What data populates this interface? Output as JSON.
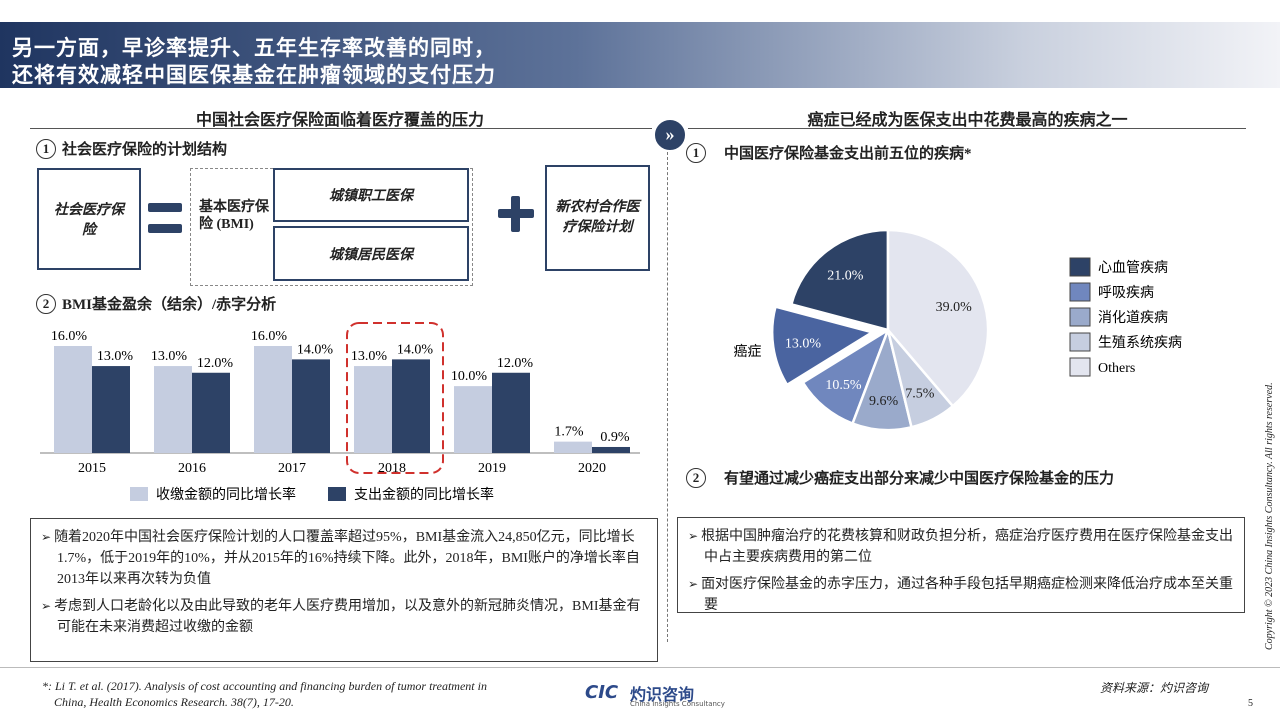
{
  "header": {
    "title_lines": [
      "另一方面，早诊率提升、五年生存率改善的同时，",
      "还将有效减轻中国医保基金在肿瘤领域的支付压力"
    ]
  },
  "left": {
    "heading": "中国社会医疗保险面临着医疗覆盖的压力",
    "section1": {
      "number": "1",
      "title": "社会医疗保险的计划结构"
    },
    "diagram": {
      "root": "社会医疗保险",
      "bmi": "基本医疗保险 (BMI)",
      "bmi_parts": [
        "城镇职工医保",
        "城镇居民医保"
      ],
      "ncms": "新农村合作医疗保险计划"
    },
    "section2": {
      "number": "2",
      "title": "BMI基金盈余（结余）/赤字分析"
    },
    "bullets": [
      "随着2020年中国社会医疗保险计划的人口覆盖率超过95%，BMI基金流入24,850亿元，同比增长1.7%，低于2019年的10%，并从2015年的16%持续下降。此外，2018年，BMI账户的净增长率自2013年以来再次转为负值",
      "考虑到人口老龄化以及由此导致的老年人医疗费用增加，以及意外的新冠肺炎情况，BMI基金有可能在未来消费超过收缴的金额"
    ]
  },
  "right": {
    "heading": "癌症已经成为医保支出中花费最高的疾病之一",
    "section1": {
      "number": "1",
      "title": "中国医疗保险基金支出前五位的疾病*"
    },
    "section2": {
      "number": "2",
      "title": "有望通过减少癌症支出部分来减少中国医疗保险基金的压力"
    },
    "bullets": [
      "根据中国肿瘤治疗的花费核算和财政负担分析，癌症治疗医疗费用在医疗保险基金支出中占主要疾病费用的第二位",
      "面对医疗保险基金的赤字压力，通过各种手段包括早期癌症检测来降低治疗成本至关重要"
    ]
  },
  "chart_data": [
    {
      "type": "bar",
      "categories": [
        "2015",
        "2016",
        "2017",
        "2018",
        "2019",
        "2020"
      ],
      "highlight": 3,
      "series": [
        {
          "name": "收缴金额的同比增长率",
          "color": "#c5cde0",
          "values": [
            16.0,
            13.0,
            16.0,
            13.0,
            10.0,
            1.7
          ],
          "value_labels": [
            "16.0%",
            "13.0%",
            "16.0%",
            "13.0%",
            "10.0%",
            "1.7%"
          ]
        },
        {
          "name": "支出金额的同比增长率",
          "color": "#2d4266",
          "values": [
            13.0,
            12.0,
            14.0,
            14.0,
            12.0,
            0.9
          ],
          "value_labels": [
            "13.0%",
            "12.0%",
            "14.0%",
            "14.0%",
            "12.0%",
            "0.9%"
          ]
        }
      ]
    },
    {
      "type": "pie",
      "direction": "counterclockwise",
      "explode": 1,
      "categories": [
        "心血管疾病",
        "癌症",
        "呼吸疾病",
        "消化道疾病",
        "生殖系统疾病",
        "Others"
      ],
      "values": [
        21.0,
        13.0,
        10.5,
        9.6,
        7.5,
        39.0
      ],
      "value_labels": [
        "21.0%",
        "13.0%",
        "10.5%",
        "9.6%",
        "7.5%",
        "39.0%"
      ],
      "colors": [
        "#2d4266",
        "#4a64a0",
        "#7087be",
        "#9aaacb",
        "#c6cee0",
        "#e3e5ef"
      ]
    }
  ],
  "footer": {
    "note_lines": [
      "*: Li T. et al. (2017). Analysis of cost accounting and financing burden of tumor treatment in",
      "China, Health Economics Research. 38(7), 17-20."
    ],
    "logo_mark": "CIC",
    "logo_name": "灼识咨询",
    "logo_sub": "China Insights Consultancy",
    "source": "资料来源：灼识咨询",
    "page": "5",
    "copyright": "Copyright © 2023 China Insights Consultancy. All rights reserved."
  }
}
